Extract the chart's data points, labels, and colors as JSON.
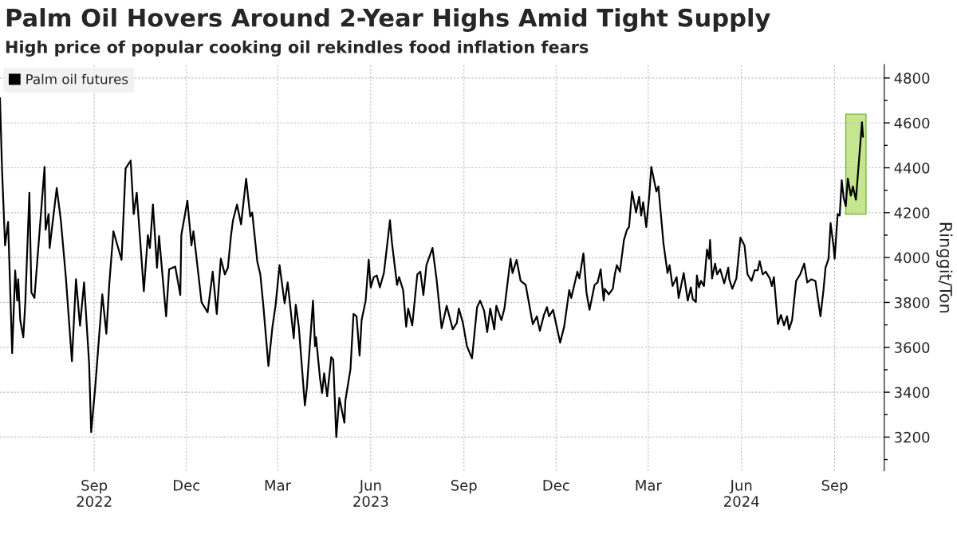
{
  "chart_data": {
    "type": "line",
    "title": "Palm Oil Hovers Around 2-Year Highs Amid Tight Supply",
    "subtitle": "High price of popular cooking oil rekindles food inflation fears",
    "ylabel": "Ringgit/Ton",
    "x": [
      "2022-05-31",
      "2022-06-02",
      "2022-06-05",
      "2022-06-08",
      "2022-06-12",
      "2022-06-15",
      "2022-06-17",
      "2022-06-18",
      "2022-06-20",
      "2022-06-23",
      "2022-06-25",
      "2022-06-29",
      "2022-07-01",
      "2022-07-04",
      "2022-07-09",
      "2022-07-14",
      "2022-07-15",
      "2022-07-18",
      "2022-07-19",
      "2022-07-26",
      "2022-07-30",
      "2022-08-04",
      "2022-08-10",
      "2022-08-14",
      "2022-08-18",
      "2022-08-22",
      "2022-08-27",
      "2022-08-29",
      "2022-09-02",
      "2022-09-09",
      "2022-09-13",
      "2022-09-16",
      "2022-09-20",
      "2022-09-28",
      "2022-10-02",
      "2022-10-07",
      "2022-10-10",
      "2022-10-13",
      "2022-10-20",
      "2022-10-24",
      "2022-10-26",
      "2022-10-29",
      "2022-11-02",
      "2022-11-04",
      "2022-11-11",
      "2022-11-14",
      "2022-11-20",
      "2022-11-25",
      "2022-11-26",
      "2022-12-02",
      "2022-12-06",
      "2022-12-08",
      "2022-12-16",
      "2022-12-22",
      "2022-12-27",
      "2022-12-31",
      "2023-01-04",
      "2023-01-08",
      "2023-01-11",
      "2023-01-14",
      "2023-01-16",
      "2023-01-20",
      "2023-01-24",
      "2023-01-29",
      "2023-02-02",
      "2023-02-04",
      "2023-02-09",
      "2023-02-12",
      "2023-02-15",
      "2023-02-20",
      "2023-02-24",
      "2023-02-27",
      "2023-03-03",
      "2023-03-08",
      "2023-03-11",
      "2023-03-17",
      "2023-03-19",
      "2023-03-22",
      "2023-03-28",
      "2023-03-30",
      "2023-04-05",
      "2023-04-07",
      "2023-04-08",
      "2023-04-12",
      "2023-04-14",
      "2023-04-16",
      "2023-04-19",
      "2023-04-23",
      "2023-04-25",
      "2023-04-28",
      "2023-05-01",
      "2023-05-06",
      "2023-05-07",
      "2023-05-12",
      "2023-05-15",
      "2023-05-18",
      "2023-05-21",
      "2023-05-23",
      "2023-05-27",
      "2023-05-30",
      "2023-06-01",
      "2023-06-04",
      "2023-06-07",
      "2023-06-10",
      "2023-06-14",
      "2023-06-17",
      "2023-06-20",
      "2023-06-22",
      "2023-06-27",
      "2023-06-29",
      "2023-07-03",
      "2023-07-06",
      "2023-07-08",
      "2023-07-12",
      "2023-07-17",
      "2023-07-20",
      "2023-07-23",
      "2023-07-26",
      "2023-08-01",
      "2023-08-05",
      "2023-08-10",
      "2023-08-15",
      "2023-08-21",
      "2023-08-25",
      "2023-08-27",
      "2023-08-31",
      "2023-09-04",
      "2023-09-09",
      "2023-09-14",
      "2023-09-17",
      "2023-09-21",
      "2023-09-24",
      "2023-09-27",
      "2023-10-01",
      "2023-10-03",
      "2023-10-08",
      "2023-10-11",
      "2023-10-17",
      "2023-10-19",
      "2023-10-23",
      "2023-10-27",
      "2023-11-01",
      "2023-11-08",
      "2023-11-12",
      "2023-11-15",
      "2023-11-19",
      "2023-11-22",
      "2023-11-24",
      "2023-11-28",
      "2023-12-05",
      "2023-12-09",
      "2023-12-14",
      "2023-12-16",
      "2023-12-22",
      "2023-12-24",
      "2023-12-28",
      "2023-12-31",
      "2024-01-03",
      "2024-01-08",
      "2024-01-11",
      "2024-01-14",
      "2024-01-17",
      "2024-01-18",
      "2024-01-22",
      "2024-01-26",
      "2024-01-28",
      "2024-01-30",
      "2024-02-02",
      "2024-02-06",
      "2024-02-09",
      "2024-02-11",
      "2024-02-14",
      "2024-02-18",
      "2024-02-21",
      "2024-02-23",
      "2024-02-25",
      "2024-02-28",
      "2024-03-02",
      "2024-03-04",
      "2024-03-09",
      "2024-03-11",
      "2024-03-16",
      "2024-03-20",
      "2024-03-22",
      "2024-03-25",
      "2024-03-29",
      "2024-03-31",
      "2024-04-05",
      "2024-04-09",
      "2024-04-12",
      "2024-04-14",
      "2024-04-17",
      "2024-04-18",
      "2024-04-20",
      "2024-04-22",
      "2024-04-25",
      "2024-04-28",
      "2024-04-30",
      "2024-05-01",
      "2024-05-03",
      "2024-05-06",
      "2024-05-08",
      "2024-05-11",
      "2024-05-15",
      "2024-05-19",
      "2024-05-20",
      "2024-05-23",
      "2024-05-27",
      "2024-05-31",
      "2024-06-04",
      "2024-06-07",
      "2024-06-11",
      "2024-06-14",
      "2024-06-17",
      "2024-06-19",
      "2024-06-22",
      "2024-06-25",
      "2024-06-29",
      "2024-07-01",
      "2024-07-03",
      "2024-07-07",
      "2024-07-10",
      "2024-07-13",
      "2024-07-16",
      "2024-07-18",
      "2024-07-21",
      "2024-07-25",
      "2024-07-29",
      "2024-08-02",
      "2024-08-05",
      "2024-08-09",
      "2024-08-13",
      "2024-08-18",
      "2024-08-21",
      "2024-08-23",
      "2024-08-26",
      "2024-08-28",
      "2024-08-31",
      "2024-09-01",
      "2024-09-04",
      "2024-09-06",
      "2024-09-08",
      "2024-09-10",
      "2024-09-12",
      "2024-09-14",
      "2024-09-17",
      "2024-09-19",
      "2024-09-22",
      "2024-09-28",
      "2024-09-29"
    ],
    "series": [
      {
        "name": "Palm oil futures",
        "color": "#000000",
        "values": [
          4710,
          4394,
          4054,
          4159,
          3574,
          3942,
          3808,
          3903,
          3721,
          3645,
          3800,
          4289,
          3844,
          3820,
          4113,
          4404,
          4124,
          4194,
          4043,
          4310,
          4169,
          3913,
          3538,
          3903,
          3696,
          3889,
          3527,
          3222,
          3422,
          3836,
          3661,
          3889,
          4117,
          3990,
          4397,
          4432,
          4194,
          4289,
          3850,
          4100,
          4043,
          4236,
          3955,
          4096,
          3738,
          3948,
          3960,
          3833,
          4100,
          4253,
          4054,
          4117,
          3800,
          3756,
          3937,
          3749,
          3995,
          3925,
          3955,
          4096,
          4166,
          4236,
          4148,
          4352,
          4183,
          4201,
          3983,
          3925,
          3785,
          3517,
          3692,
          3785,
          3966,
          3796,
          3889,
          3640,
          3790,
          3692,
          3341,
          3422,
          3808,
          3605,
          3645,
          3459,
          3396,
          3484,
          3382,
          3556,
          3545,
          3200,
          3375,
          3264,
          3363,
          3503,
          3749,
          3738,
          3563,
          3721,
          3808,
          3990,
          3867,
          3913,
          3920,
          3867,
          3931,
          4047,
          4166,
          4064,
          3878,
          3913,
          3855,
          3692,
          3773,
          3698,
          3925,
          3937,
          3833,
          3966,
          4043,
          3903,
          3685,
          3785,
          3680,
          3709,
          3773,
          3709,
          3605,
          3551,
          3779,
          3808,
          3762,
          3668,
          3773,
          3680,
          3785,
          3721,
          3773,
          3995,
          3931,
          3990,
          3896,
          3878,
          3703,
          3738,
          3674,
          3744,
          3779,
          3738,
          3767,
          3621,
          3692,
          3855,
          3820,
          3937,
          3907,
          4019,
          3844,
          3767,
          3878,
          3889,
          3948,
          3808,
          3861,
          3836,
          3861,
          3925,
          3966,
          3937,
          4078,
          4124,
          4136,
          4294,
          4201,
          4271,
          4187,
          4247,
          4136,
          4276,
          4404,
          4294,
          4317,
          4064,
          3931,
          3966,
          3873,
          3913,
          3820,
          3931,
          3808,
          3867,
          3815,
          3802,
          3920,
          3867,
          3896,
          3873,
          4036,
          3995,
          4078,
          3907,
          3973,
          3925,
          3948,
          3885,
          3955,
          3903,
          3861,
          3907,
          4089,
          4054,
          3925,
          3896,
          3943,
          3943,
          3984,
          3925,
          3937,
          3907,
          3873,
          3913,
          3703,
          3744,
          3698,
          3738,
          3680,
          3721,
          3896,
          3925,
          3973,
          3889,
          3903,
          3896,
          3738,
          3855,
          3955,
          3995,
          4154,
          4047,
          3995,
          4194,
          4187,
          4345,
          4264,
          4229,
          4352,
          4276,
          4317,
          4258,
          4603,
          4538
        ]
      }
    ],
    "xlim": [
      "2022-05-31",
      "2024-10-20"
    ],
    "xticks": [
      {
        "value": "2022-09-01",
        "label": "Sep\n2022"
      },
      {
        "value": "2022-12-01",
        "label": "Dec"
      },
      {
        "value": "2023-03-01",
        "label": "Mar"
      },
      {
        "value": "2023-06-01",
        "label": "Jun\n2023"
      },
      {
        "value": "2023-09-01",
        "label": "Sep"
      },
      {
        "value": "2023-12-01",
        "label": "Dec"
      },
      {
        "value": "2024-03-01",
        "label": "Mar"
      },
      {
        "value": "2024-06-01",
        "label": "Jun\n2024"
      },
      {
        "value": "2024-09-01",
        "label": "Sep"
      }
    ],
    "ylim": [
      3050,
      4860
    ],
    "yticks": [
      {
        "value": 3100,
        "label": null
      },
      3200,
      {
        "value": 3300,
        "label": null
      },
      3400,
      {
        "value": 3500,
        "label": null
      },
      3600,
      {
        "value": 3700,
        "label": null
      },
      3800,
      {
        "value": 3900,
        "label": null
      },
      4000,
      {
        "value": 4100,
        "label": null
      },
      4200,
      {
        "value": 4300,
        "label": null
      },
      4400,
      {
        "value": 4500,
        "label": null
      },
      4600,
      {
        "value": 4700,
        "label": null
      },
      4800
    ],
    "bands": [
      {
        "axis": "x",
        "from": "2024-09-12",
        "to": "2024-10-02",
        "color": "#c5e58e"
      }
    ],
    "grid": true,
    "legend": "top left",
    "line_style": "solid"
  }
}
